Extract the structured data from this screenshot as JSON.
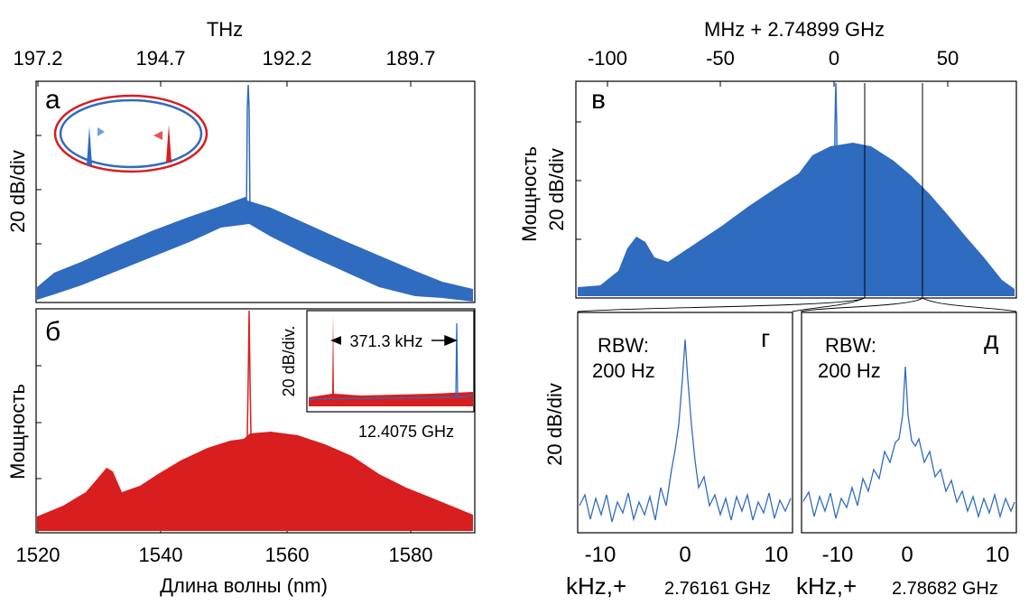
{
  "colors": {
    "blue": "#2f6bbf",
    "red": "#d81e1e",
    "frame": "#000000"
  },
  "left": {
    "top_axis": {
      "title": "THz",
      "ticks": [
        "197.2",
        "194.7",
        "192.2",
        "189.7"
      ]
    },
    "bottom_axis": {
      "title": "Длина волны (nm)",
      "ticks": [
        "1520",
        "1540",
        "1560",
        "1580"
      ]
    },
    "panel_a": {
      "letter": "а",
      "ylabel": "20 dB/div"
    },
    "panel_b": {
      "letter": "б",
      "ylabel": "Мощность",
      "inset": {
        "ylabel": "20 dB/div.",
        "span_label": "371.3 kHz",
        "xlabel": "12.4075 GHz"
      }
    }
  },
  "right": {
    "top_axis": {
      "title": "MHz + 2.74899 GHz",
      "ticks": [
        "-100",
        "-50",
        "0",
        "50"
      ]
    },
    "panel_v": {
      "letter": "в",
      "ylabel_line1": "Мощность",
      "ylabel_line2": "20 dB/div"
    },
    "shared_ylabel": "20 dB/div",
    "panel_g": {
      "letter": "г",
      "rbw_label": "RBW:",
      "rbw_value": "200 Hz",
      "ticks": [
        "-10",
        "0",
        "10"
      ],
      "xlabel_unit": "kHz,+",
      "xlabel_offset": "2.76161 GHz"
    },
    "panel_d": {
      "letter": "д",
      "rbw_label": "RBW:",
      "rbw_value": "200 Hz",
      "ticks": [
        "-10",
        "0",
        "10"
      ],
      "xlabel_unit": "kHz,+",
      "xlabel_offset": "2.78682 GHz"
    }
  },
  "chart_data": [
    {
      "type": "line",
      "panel": "а",
      "xlabel": "Длина волны (nm)",
      "ylabel": "20 dB/div",
      "x2label": "THz",
      "xlim": [
        1520,
        1590
      ],
      "series": [
        {
          "points": [
            [
              1521,
              0.05
            ],
            [
              1535,
              0.38
            ],
            [
              1550,
              0.67
            ],
            [
              1552.8,
              0.72
            ],
            [
              1552.8,
              1.0
            ],
            [
              1553.2,
              0.72
            ],
            [
              1570,
              0.4
            ],
            [
              1589,
              0.02
            ]
          ]
        }
      ]
    },
    {
      "type": "line",
      "panel": "б",
      "xlabel": "Длина волны (nm)",
      "ylabel": "Мощность",
      "xlim": [
        1520,
        1590
      ],
      "series": [
        {
          "points": [
            [
              1521,
              0.05
            ],
            [
              1530,
              0.25
            ],
            [
              1537,
              0.3
            ],
            [
              1552,
              0.64
            ],
            [
              1552.8,
              1.0
            ],
            [
              1556,
              0.6
            ],
            [
              1572,
              0.5
            ],
            [
              1589,
              0.05
            ]
          ]
        }
      ]
    },
    {
      "type": "line",
      "panel": "в",
      "xlabel": "MHz + 2.74899 GHz",
      "ylabel": "20 dB/div",
      "xlim": [
        -115,
        85
      ],
      "series": [
        {
          "points": [
            [
              -115,
              0.03
            ],
            [
              -95,
              0.15
            ],
            [
              -85,
              0.4
            ],
            [
              -75,
              0.2
            ],
            [
              -40,
              0.5
            ],
            [
              0,
              0.85
            ],
            [
              15,
              0.86
            ],
            [
              40,
              0.65
            ],
            [
              65,
              0.3
            ],
            [
              80,
              0.05
            ]
          ]
        }
      ]
    },
    {
      "type": "line",
      "panel": "г",
      "xlabel": "kHz,+ 2.76161 GHz",
      "ylabel": "20 dB/div",
      "xlim": [
        -12,
        11
      ],
      "series": [
        {
          "points": [
            [
              -12,
              0.12
            ],
            [
              -4,
              0.14
            ],
            [
              -1,
              0.4
            ],
            [
              0,
              0.87
            ],
            [
              1,
              0.4
            ],
            [
              4,
              0.14
            ],
            [
              11,
              0.12
            ]
          ]
        }
      ]
    },
    {
      "type": "line",
      "panel": "д",
      "xlabel": "kHz,+ 2.78682 GHz",
      "ylabel": "20 dB/div",
      "xlim": [
        -12,
        11
      ],
      "series": [
        {
          "points": [
            [
              -12,
              0.13
            ],
            [
              -4,
              0.28
            ],
            [
              -1,
              0.46
            ],
            [
              0,
              0.78
            ],
            [
              1,
              0.46
            ],
            [
              4,
              0.28
            ],
            [
              11,
              0.13
            ]
          ]
        }
      ]
    }
  ]
}
